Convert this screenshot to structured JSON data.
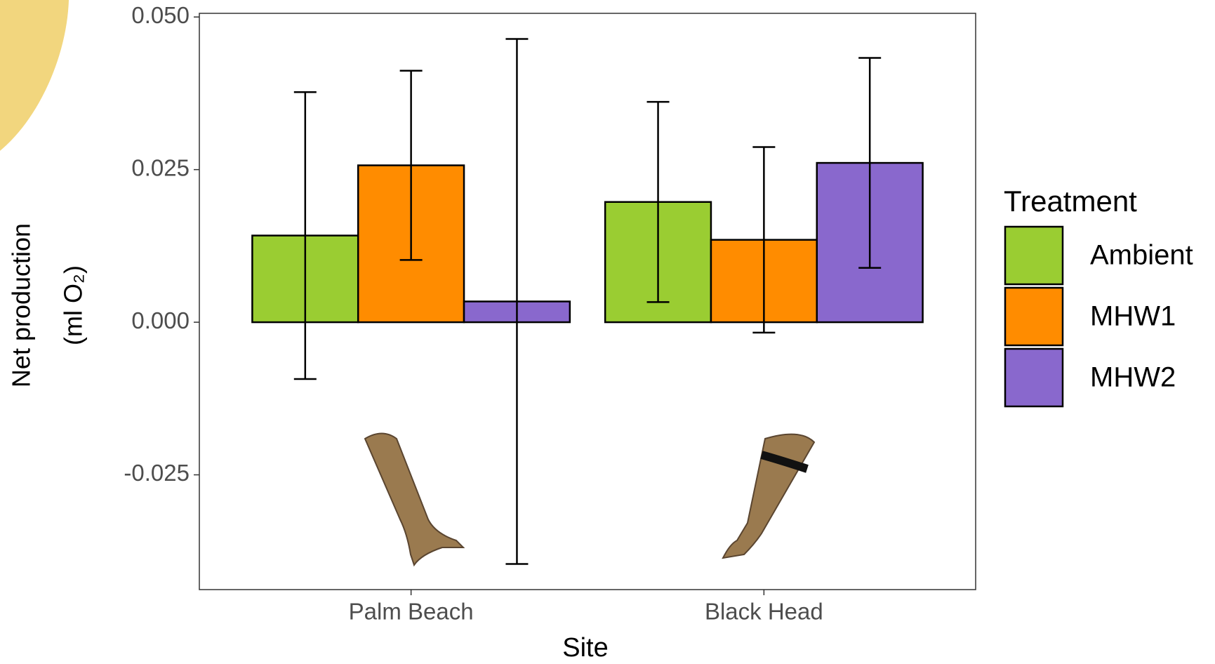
{
  "chart_data": {
    "type": "bar",
    "x_label": "Site",
    "y_label": [
      "Net production",
      "(ml O₂)"
    ],
    "categories": [
      "Palm Beach",
      "Black Head"
    ],
    "legend_title": "Treatment",
    "series": [
      {
        "name": "Ambient",
        "color": "#9acd32",
        "values": [
          0.0142,
          0.0197
        ],
        "errors": [
          0.0235,
          0.0164
        ]
      },
      {
        "name": "MHW1",
        "color": "#ff8c00",
        "values": [
          0.0257,
          0.0135
        ],
        "errors": [
          0.0155,
          0.0152
        ]
      },
      {
        "name": "MHW2",
        "color": "#8968cd",
        "values": [
          0.0034,
          0.0261
        ],
        "errors": [
          0.043,
          0.0172
        ]
      }
    ],
    "ylim": [
      -0.0438,
      0.0506
    ],
    "yticks": [
      -0.025,
      {
        "value": 0,
        "label": "0.000"
      },
      0.025,
      {
        "value": 0.05,
        "label": "0.050"
      }
    ],
    "legend": "right"
  }
}
